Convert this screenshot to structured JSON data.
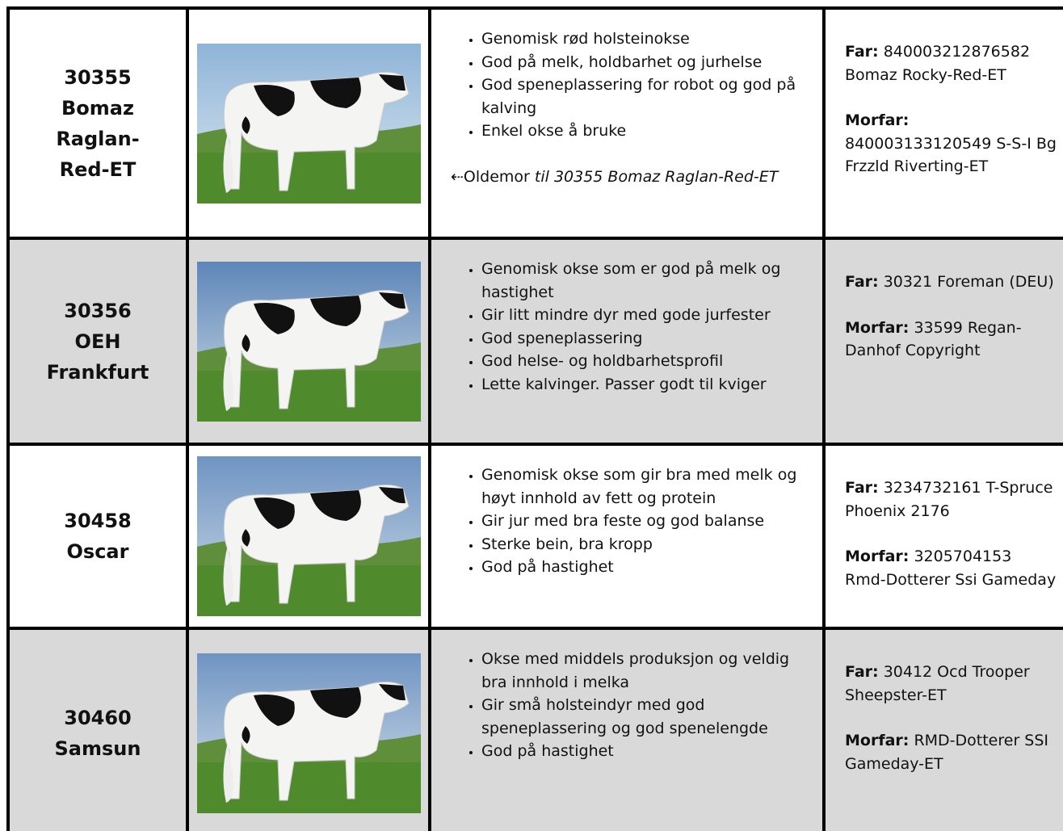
{
  "table": {
    "rows": [
      {
        "name": "30355 Bomaz Raglan-Red-ET",
        "points": [
          "Genomisk rød holsteinokse",
          "God på melk, holdbarhet og jurhelse",
          "God speneplassering for robot og god på kalving",
          "Enkel okse å bruke"
        ],
        "note": {
          "prefix": "⇠Oldemor",
          "italic": "til 30355 Bomaz Raglan-Red-ET"
        },
        "far": {
          "label": "Far:",
          "value": "840003212876582 Bomaz Rocky-Red-ET"
        },
        "morfar": {
          "label": "Morfar:",
          "value": "840003133120549 S-S-I Bg Frzzld Riverting-ET"
        }
      },
      {
        "name": "30356 OEH Frankfurt",
        "points": [
          "Genomisk okse som er god på melk og hastighet",
          "Gir litt mindre dyr med gode jurfester",
          "God speneplassering",
          "God helse- og holdbarhetsprofil",
          "Lette kalvinger. Passer godt til kviger"
        ],
        "far": {
          "label": "Far:",
          "value": "30321 Foreman (DEU)"
        },
        "morfar": {
          "label": "Morfar:",
          "value": "33599 Regan-Danhof Copyright"
        }
      },
      {
        "name": "30458 Oscar",
        "points": [
          "Genomisk okse som gir bra med melk og høyt innhold av fett og protein",
          "Gir jur med bra feste og god balanse",
          "Sterke bein, bra kropp",
          "God på hastighet"
        ],
        "far": {
          "label": "Far:",
          "value": "3234732161 T-Spruce Phoenix 2176"
        },
        "morfar": {
          "label": "Morfar:",
          "value": "3205704153 Rmd-Dotterer Ssi Gameday"
        }
      },
      {
        "name": "30460 Samsun",
        "points": [
          "Okse med middels produksjon og veldig bra innhold i melka",
          "Gir små holsteindyr med god speneplassering og god spenelengde",
          "God på hastighet"
        ],
        "far": {
          "label": "Far:",
          "value": "30412 Ocd Trooper Sheepster-ET"
        },
        "morfar": {
          "label": "Morfar:",
          "value": "RMD-Dotterer SSI Gameday-ET"
        }
      }
    ]
  }
}
